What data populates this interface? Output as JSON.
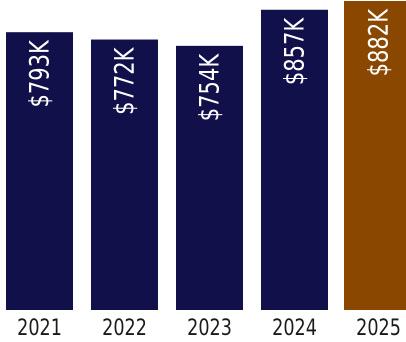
{
  "chart_data": {
    "type": "bar",
    "categories": [
      "2021",
      "2022",
      "2023",
      "2024",
      "2025"
    ],
    "values": [
      793,
      772,
      754,
      857,
      882
    ],
    "value_labels": [
      "$793K",
      "$772K",
      "$754K",
      "$857K",
      "$882K"
    ],
    "unit": "K",
    "ylim": [
      0,
      882
    ],
    "title": "",
    "xlabel": "",
    "ylabel": "",
    "grid": false,
    "legend": "none",
    "colors": {
      "default_bar": "#12104a",
      "highlight_bar": "#8a4700",
      "highlight_category": "2025",
      "label_text": "#ffffff",
      "tick_text": "#1a1a1a"
    }
  }
}
